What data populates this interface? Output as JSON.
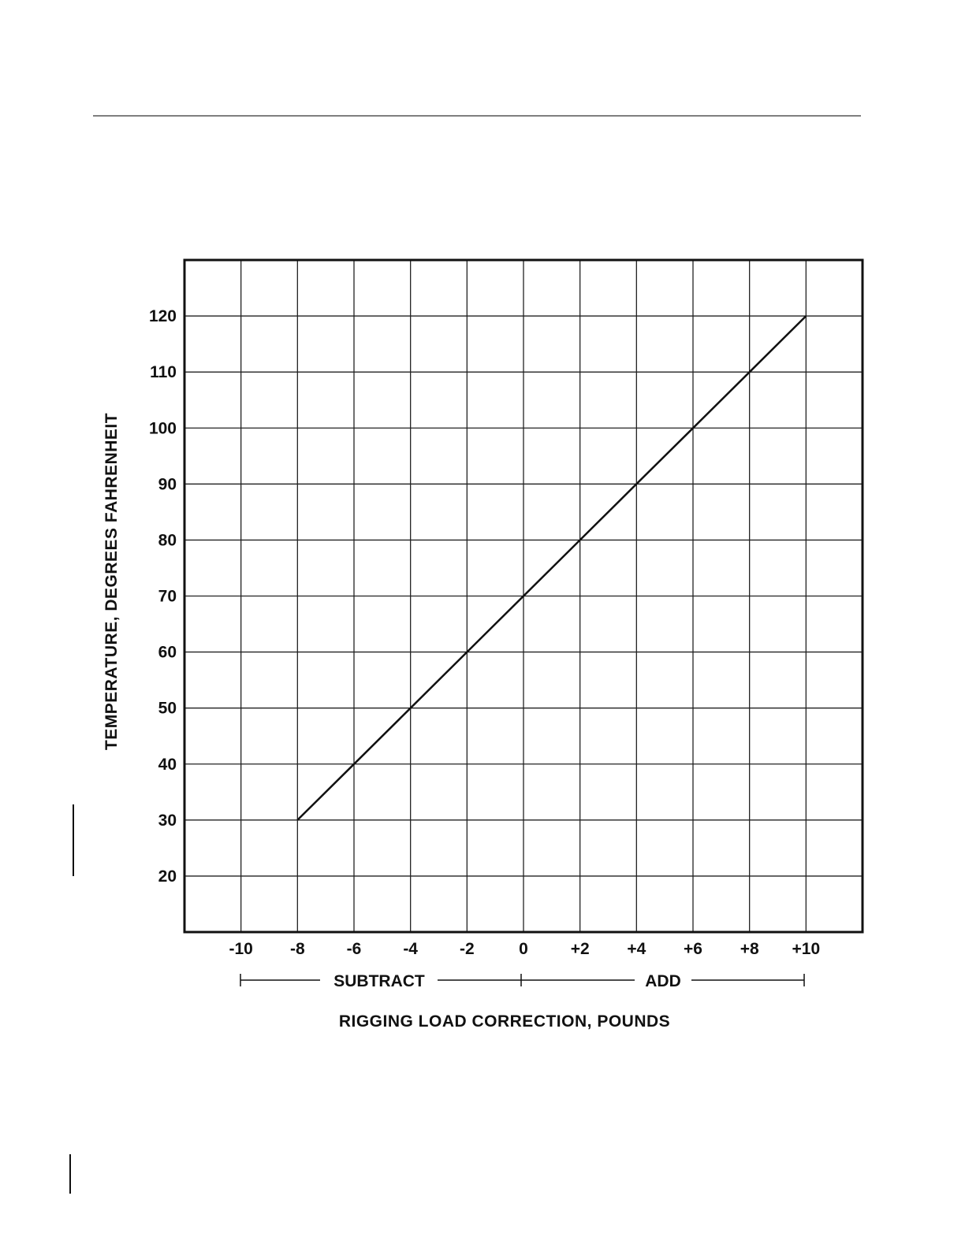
{
  "chart_data": {
    "type": "line",
    "title": "",
    "xlabel": "RIGGING LOAD CORRECTION, POUNDS",
    "ylabel": "TEMPERATURE, DEGREES FAHRENHEIT",
    "x_ticks": [
      {
        "value": -10,
        "label": "-10"
      },
      {
        "value": -8,
        "label": "-8"
      },
      {
        "value": -6,
        "label": "-6"
      },
      {
        "value": -4,
        "label": "-4"
      },
      {
        "value": -2,
        "label": "-2"
      },
      {
        "value": 0,
        "label": "0"
      },
      {
        "value": 2,
        "label": "+2"
      },
      {
        "value": 4,
        "label": "+4"
      },
      {
        "value": 6,
        "label": "+6"
      },
      {
        "value": 8,
        "label": "+8"
      },
      {
        "value": 10,
        "label": "+10"
      }
    ],
    "y_ticks": [
      20,
      30,
      40,
      50,
      60,
      70,
      80,
      90,
      100,
      110,
      120
    ],
    "xlim": [
      -12,
      12
    ],
    "ylim": [
      10,
      130
    ],
    "grid": true,
    "range_labels": {
      "subtract": "SUBTRACT",
      "add": "ADD"
    },
    "series": [
      {
        "x": [
          -8,
          -6,
          -4,
          -2,
          0,
          2,
          4,
          6,
          8,
          10
        ],
        "y": [
          30,
          40,
          50,
          60,
          70,
          80,
          90,
          100,
          110,
          120
        ]
      }
    ],
    "colors": {
      "line": "#111111",
      "grid": "#222222",
      "frame": "#111111"
    }
  }
}
